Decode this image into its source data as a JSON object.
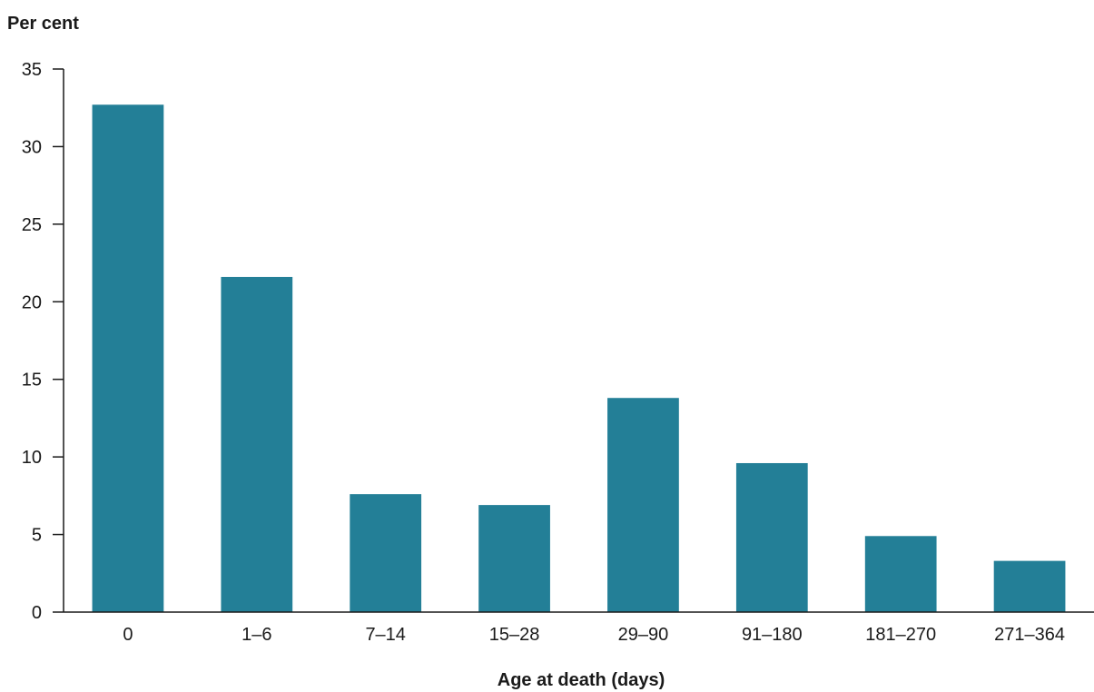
{
  "chart_data": {
    "type": "bar",
    "title": "",
    "ylabel": "Per cent",
    "xlabel": "Age at death (days)",
    "categories": [
      "0",
      "1–6",
      "7–14",
      "15–28",
      "29–90",
      "91–180",
      "181–270",
      "271–364"
    ],
    "values": [
      32.7,
      21.6,
      7.6,
      6.9,
      13.8,
      9.6,
      4.9,
      3.3
    ],
    "ylim": [
      0,
      35
    ],
    "yticks": [
      0,
      5,
      10,
      15,
      20,
      25,
      30,
      35
    ],
    "bar_color": "#237f97",
    "grid": false,
    "legend": "none"
  }
}
